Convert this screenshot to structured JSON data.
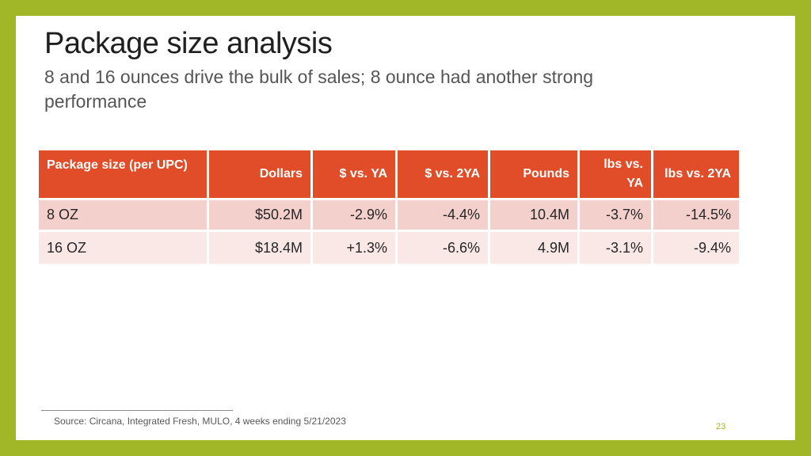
{
  "slide": {
    "title": "Package size analysis",
    "subtitle": "8 and 16 ounces drive the bulk of sales; 8 ounce had another strong performance",
    "source": "Source: Circana, Integrated Fresh, MULO, 4 weeks ending 5/21/2023",
    "page_number": "23"
  },
  "colors": {
    "frame": "#a2b728",
    "header": "#e14d28",
    "row_odd": "#f4d0cd",
    "row_even": "#fae8e7"
  },
  "table": {
    "headers": [
      "Package size (per UPC)",
      "Dollars",
      "$ vs. YA",
      "$ vs. 2YA",
      "Pounds",
      "lbs vs. YA",
      "lbs vs. 2YA"
    ],
    "rows": [
      [
        "8 OZ",
        "$50.2M",
        "-2.9%",
        "-4.4%",
        "10.4M",
        "-3.7%",
        "-14.5%"
      ],
      [
        "16 OZ",
        "$18.4M",
        "+1.3%",
        "-6.6%",
        "4.9M",
        "-3.1%",
        "-9.4%"
      ]
    ]
  }
}
